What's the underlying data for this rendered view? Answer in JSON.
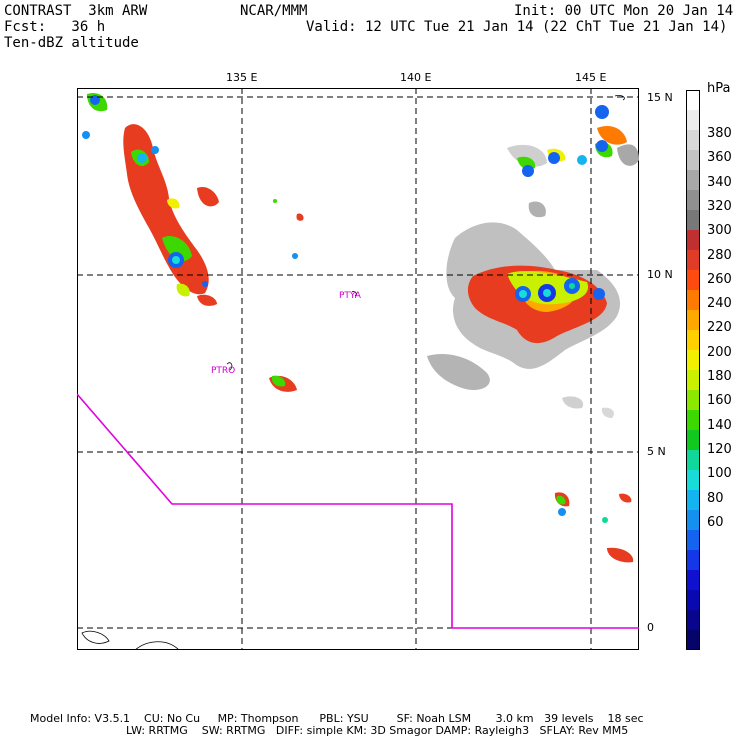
{
  "header": {
    "line1_left": "CONTRAST  3km ARW",
    "line1_center": "NCAR/MMM",
    "line1_right": "Init: 00 UTC Mon 20 Jan 14",
    "line2_left": "Fcst:   36 h",
    "line2_right": "Valid: 12 UTC Tue 21 Jan 14 (22 ChT Tue 21 Jan 14)",
    "line3_left": "Ten-dBZ altitude"
  },
  "map": {
    "lon_labels": [
      "135 E",
      "140 E",
      "145 E"
    ],
    "lat_labels": [
      "15 N",
      "10 N",
      "5 N",
      "0"
    ],
    "stations": [
      "PTYA",
      "PTRO"
    ],
    "boundary_color": "#e000e0"
  },
  "colorbar": {
    "unit": "hPa",
    "labels": [
      "380",
      "360",
      "340",
      "320",
      "300",
      "280",
      "260",
      "240",
      "220",
      "200",
      "180",
      "160",
      "140",
      "120",
      "100",
      "80",
      "60"
    ],
    "colors": [
      "#ffffff",
      "#ececec",
      "#d8d8d8",
      "#c4c4c4",
      "#a8a8a8",
      "#909090",
      "#787878",
      "#c03030",
      "#e03c28",
      "#ff4a10",
      "#ff7a00",
      "#ffa800",
      "#ffd000",
      "#f0f000",
      "#c8f000",
      "#8ce800",
      "#3cd800",
      "#10c820",
      "#10d89a",
      "#18dcd8",
      "#14b4f0",
      "#1490f0",
      "#1464f0",
      "#1438e8",
      "#1010d0",
      "#0a08b0",
      "#08068c",
      "#06046a"
    ]
  },
  "footer": {
    "line1": "Model Info: V3.5.1    CU: No Cu     MP: Thompson      PBL: YSU        SF: Noah LSM       3.0 km   39 levels    18 sec",
    "line2": "LW: RRTMG    SW: RRTMG   DIFF: simple KM: 3D Smagor DAMP: Rayleigh3   SFLAY: Rev MM5"
  }
}
